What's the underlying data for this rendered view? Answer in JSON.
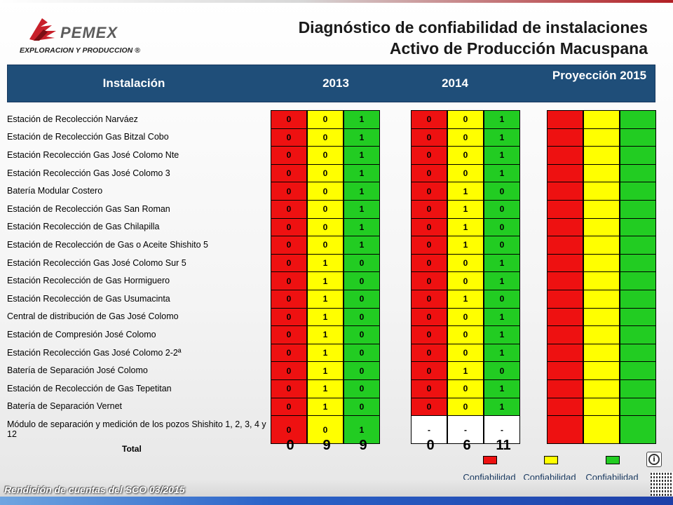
{
  "logo": {
    "brand": "PEMEX",
    "subtitle": "EXPLORACION Y PRODUCCION ®"
  },
  "title": {
    "line1": "Diagnóstico de confiabilidad de instalaciones",
    "line2": "Activo de Producción Macuspana"
  },
  "header": {
    "col_installation": "Instalación",
    "col_2013": "2013",
    "col_2014": "2014",
    "col_projection": "Proyección 2015"
  },
  "rows": [
    {
      "name": "Estación de Recolección  Narváez",
      "y2013": [
        "0",
        "0",
        "1"
      ],
      "y2014": [
        "0",
        "0",
        "1"
      ]
    },
    {
      "name": "Estación de Recolección Gas Bitzal Cobo",
      "y2013": [
        "0",
        "0",
        "1"
      ],
      "y2014": [
        "0",
        "0",
        "1"
      ]
    },
    {
      "name": "Estación Recolección Gas José Colomo Nte",
      "y2013": [
        "0",
        "0",
        "1"
      ],
      "y2014": [
        "0",
        "0",
        "1"
      ]
    },
    {
      "name": "Estación Recolección Gas José Colomo 3",
      "y2013": [
        "0",
        "0",
        "1"
      ],
      "y2014": [
        "0",
        "0",
        "1"
      ]
    },
    {
      "name": "Batería Modular Costero",
      "y2013": [
        "0",
        "0",
        "1"
      ],
      "y2014": [
        "0",
        "1",
        "0"
      ]
    },
    {
      "name": "Estación de Recolección Gas San Roman",
      "y2013": [
        "0",
        "0",
        "1"
      ],
      "y2014": [
        "0",
        "1",
        "0"
      ]
    },
    {
      "name": "Estación Recolección de Gas Chilapilla",
      "y2013": [
        "0",
        "0",
        "1"
      ],
      "y2014": [
        "0",
        "1",
        "0"
      ]
    },
    {
      "name": "Estación de Recolección de Gas o Aceite Shishito 5",
      "y2013": [
        "0",
        "0",
        "1"
      ],
      "y2014": [
        "0",
        "1",
        "0"
      ]
    },
    {
      "name": "Estación Recolección Gas José Colomo Sur 5",
      "y2013": [
        "0",
        "1",
        "0"
      ],
      "y2014": [
        "0",
        "0",
        "1"
      ]
    },
    {
      "name": "Estación Recolección de Gas Hormiguero",
      "y2013": [
        "0",
        "1",
        "0"
      ],
      "y2014": [
        "0",
        "0",
        "1"
      ]
    },
    {
      "name": "Estación Recolección de Gas Usumacinta",
      "y2013": [
        "0",
        "1",
        "0"
      ],
      "y2014": [
        "0",
        "1",
        "0"
      ]
    },
    {
      "name": "Central de distribución de Gas José Colomo",
      "y2013": [
        "0",
        "1",
        "0"
      ],
      "y2014": [
        "0",
        "0",
        "1"
      ]
    },
    {
      "name": "Estación de Compresión José Colomo",
      "y2013": [
        "0",
        "1",
        "0"
      ],
      "y2014": [
        "0",
        "0",
        "1"
      ]
    },
    {
      "name": "Estación Recolección Gas José Colomo 2-2ª",
      "y2013": [
        "0",
        "1",
        "0"
      ],
      "y2014": [
        "0",
        "0",
        "1"
      ]
    },
    {
      "name": "Batería de Separación José Colomo",
      "y2013": [
        "0",
        "1",
        "0"
      ],
      "y2014": [
        "0",
        "1",
        "0"
      ]
    },
    {
      "name": "Estación de Recolección de Gas Tepetitan",
      "y2013": [
        "0",
        "1",
        "0"
      ],
      "y2014": [
        "0",
        "0",
        "1"
      ]
    },
    {
      "name": "Batería de Separación Vernet",
      "y2013": [
        "0",
        "1",
        "0"
      ],
      "y2014": [
        "0",
        "0",
        "1"
      ]
    },
    {
      "name": "Módulo de separación y medición de los pozos Shishito 1, 2, 3, 4 y 12",
      "y2013": [
        "0",
        "0",
        "1"
      ],
      "y2014": [
        "-",
        "-",
        "-"
      ]
    }
  ],
  "totals": {
    "label": "Total",
    "y2013": [
      "0",
      "9",
      "9"
    ],
    "y2014": [
      "0",
      "6",
      "11"
    ]
  },
  "legend": [
    {
      "label": "Confiabilidad\nNo aceptable",
      "color": "#ee1111"
    },
    {
      "label": "Confiabilidad\nDisminuida",
      "color": "#ffff00"
    },
    {
      "label": "Confiabilidad\nAceptable",
      "color": "#22cc22"
    }
  ],
  "footer": {
    "text": "Rendición de cuentas del SCO 03/2015"
  },
  "colors": {
    "red": "#ee1111",
    "yellow": "#ffff00",
    "green": "#22cc22",
    "header": "#1f4e79"
  },
  "icons": {
    "info": "info-icon",
    "qr": "qr-code-icon",
    "logo": "pemex-eagle-logo"
  }
}
